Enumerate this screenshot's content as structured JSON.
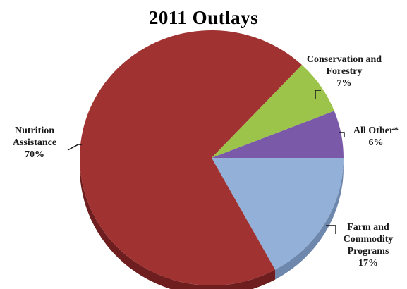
{
  "chart_data": {
    "type": "pie",
    "title": "2011 Outlays",
    "slices": [
      {
        "label": "Farm and Commodity Programs",
        "value": 17,
        "value_label": "17%",
        "color": "#93b0d8",
        "side_color": "#6e87ad"
      },
      {
        "label": "Nutrition Assistance",
        "value": 70,
        "value_label": "70%",
        "color": "#a03232",
        "side_color": "#6e1e1e"
      },
      {
        "label": "Conservation and Forestry",
        "value": 7,
        "value_label": "7%",
        "color": "#9cc34a",
        "side_color": "#6f8f30"
      },
      {
        "label": "All Other*",
        "value": 6,
        "value_label": "6%",
        "color": "#7a5aa8",
        "side_color": "#553b7c"
      }
    ],
    "label_lines": {
      "conservation": [
        "Conservation and",
        "Forestry"
      ],
      "allother": [
        "All Other*"
      ],
      "nutrition": [
        "Nutrition",
        "Assistance"
      ],
      "farm": [
        "Farm and",
        "Commodity",
        "Programs"
      ]
    }
  }
}
